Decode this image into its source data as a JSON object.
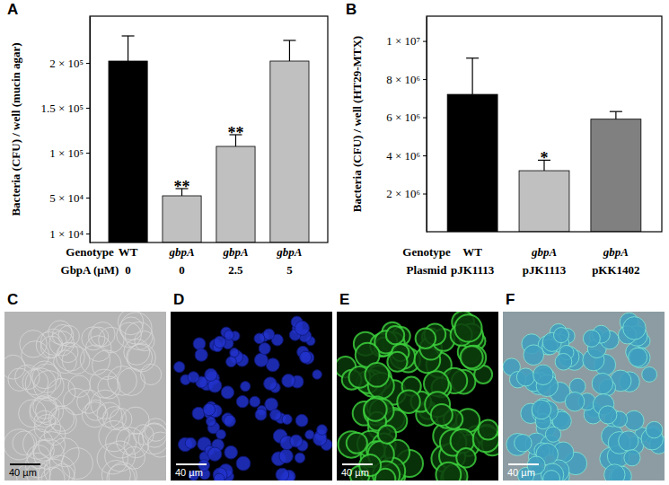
{
  "chart_data": [
    {
      "type": "bar",
      "title": "A",
      "y_label": "Bacteria (CFU) / well (mucin agar)",
      "x_label": "Genotype",
      "categories": [
        "WT",
        "gbpA",
        "gbpA",
        "gbpA"
      ],
      "secondary_categories": {
        "label": "GbpA (µM)",
        "values": [
          0,
          0,
          2.5,
          5
        ]
      },
      "values": [
        202000,
        52000,
        107000,
        202000
      ],
      "errors": [
        28000,
        8000,
        13000,
        23000
      ],
      "significance": [
        null,
        "**",
        "**",
        null
      ],
      "colors": [
        "#000000",
        "#c0c0c0",
        "#c0c0c0",
        "#c0c0c0"
      ],
      "ylim": [
        0,
        252000
      ],
      "yticks": [
        {
          "value": 10000,
          "label": "1 × 10⁴"
        },
        {
          "value": 50000,
          "label": "5 × 10⁴"
        },
        {
          "value": 100000,
          "label": "1 × 10⁵"
        },
        {
          "value": 150000,
          "label": "1.5 × 10⁵"
        },
        {
          "value": 200000,
          "label": "2 × 10⁵"
        }
      ],
      "grid": false
    },
    {
      "type": "bar",
      "title": "B",
      "y_label": "Bacteria (CFU) / well (HT29-MTX)",
      "x_label": "Genotype",
      "categories": [
        "WT",
        "gbpA",
        "gbpA"
      ],
      "secondary_categories": {
        "label": "Plasmid",
        "values": [
          "pJK1113",
          "pJK1113",
          "pKK1402"
        ]
      },
      "values": [
        7200000,
        3200000,
        5900000
      ],
      "errors": [
        1900000,
        550000,
        400000
      ],
      "significance": [
        null,
        "*",
        null
      ],
      "colors": [
        "#000000",
        "#c0c0c0",
        "#808080"
      ],
      "ylim": [
        0,
        11300000
      ],
      "yticks": [
        {
          "value": 2000000,
          "label": "2 × 10⁶"
        },
        {
          "value": 4000000,
          "label": "4 × 10⁶"
        },
        {
          "value": 6000000,
          "label": "6 × 10⁶"
        },
        {
          "value": 8000000,
          "label": "8 × 10⁶"
        },
        {
          "value": 10000000,
          "label": "1 × 10⁷"
        }
      ],
      "grid": false
    }
  ],
  "image_panels": [
    {
      "label": "C",
      "scale_bar": "40 µm"
    },
    {
      "label": "D",
      "scale_bar": "40 µm"
    },
    {
      "label": "E",
      "scale_bar": "40 µm"
    },
    {
      "label": "F",
      "scale_bar": "40 µm"
    }
  ]
}
